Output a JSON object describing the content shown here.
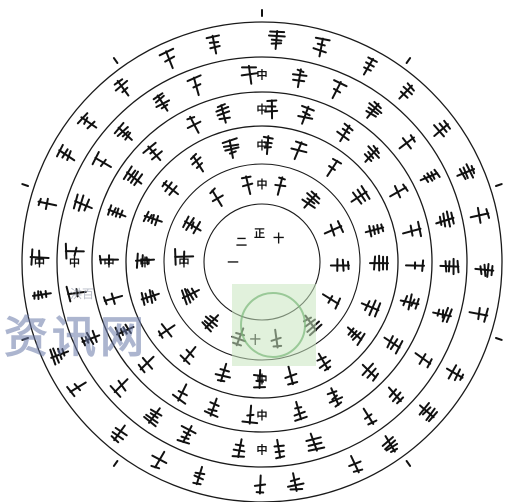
{
  "diagram": {
    "rings": [
      {
        "name": "ring-1"
      },
      {
        "name": "ring-2"
      },
      {
        "name": "ring-3"
      },
      {
        "name": "ring-4"
      },
      {
        "name": "ring-5"
      },
      {
        "name": "ring-6"
      }
    ],
    "labels": [
      {
        "text": "二",
        "ring": 1,
        "angle": -135
      },
      {
        "text": "正",
        "ring": 1,
        "angle": -95
      },
      {
        "text": "十",
        "ring": 1,
        "angle": -55
      },
      {
        "text": "一",
        "ring": 1,
        "angle": 180
      },
      {
        "text": "中",
        "ring": 2,
        "angle": -90
      },
      {
        "text": "中",
        "ring": 2,
        "angle": 180
      },
      {
        "text": "十",
        "ring": 2,
        "angle": 95
      },
      {
        "text": "中",
        "ring": 3,
        "angle": -90
      },
      {
        "text": "中",
        "ring": 3,
        "angle": 180
      },
      {
        "text": "中",
        "ring": 3,
        "angle": 90
      },
      {
        "text": "中",
        "ring": 4,
        "angle": 180
      },
      {
        "text": "中",
        "ring": 4,
        "angle": -90
      },
      {
        "text": "中",
        "ring": 4,
        "angle": 90
      },
      {
        "text": "中",
        "ring": 5,
        "angle": -90
      },
      {
        "text": "中",
        "ring": 5,
        "angle": 180
      },
      {
        "text": "中",
        "ring": 5,
        "angle": 90
      },
      {
        "text": "中",
        "ring": 6,
        "angle": 180
      }
    ]
  },
  "watermark": {
    "site_text": "资讯网",
    "small_text": "洪百"
  }
}
